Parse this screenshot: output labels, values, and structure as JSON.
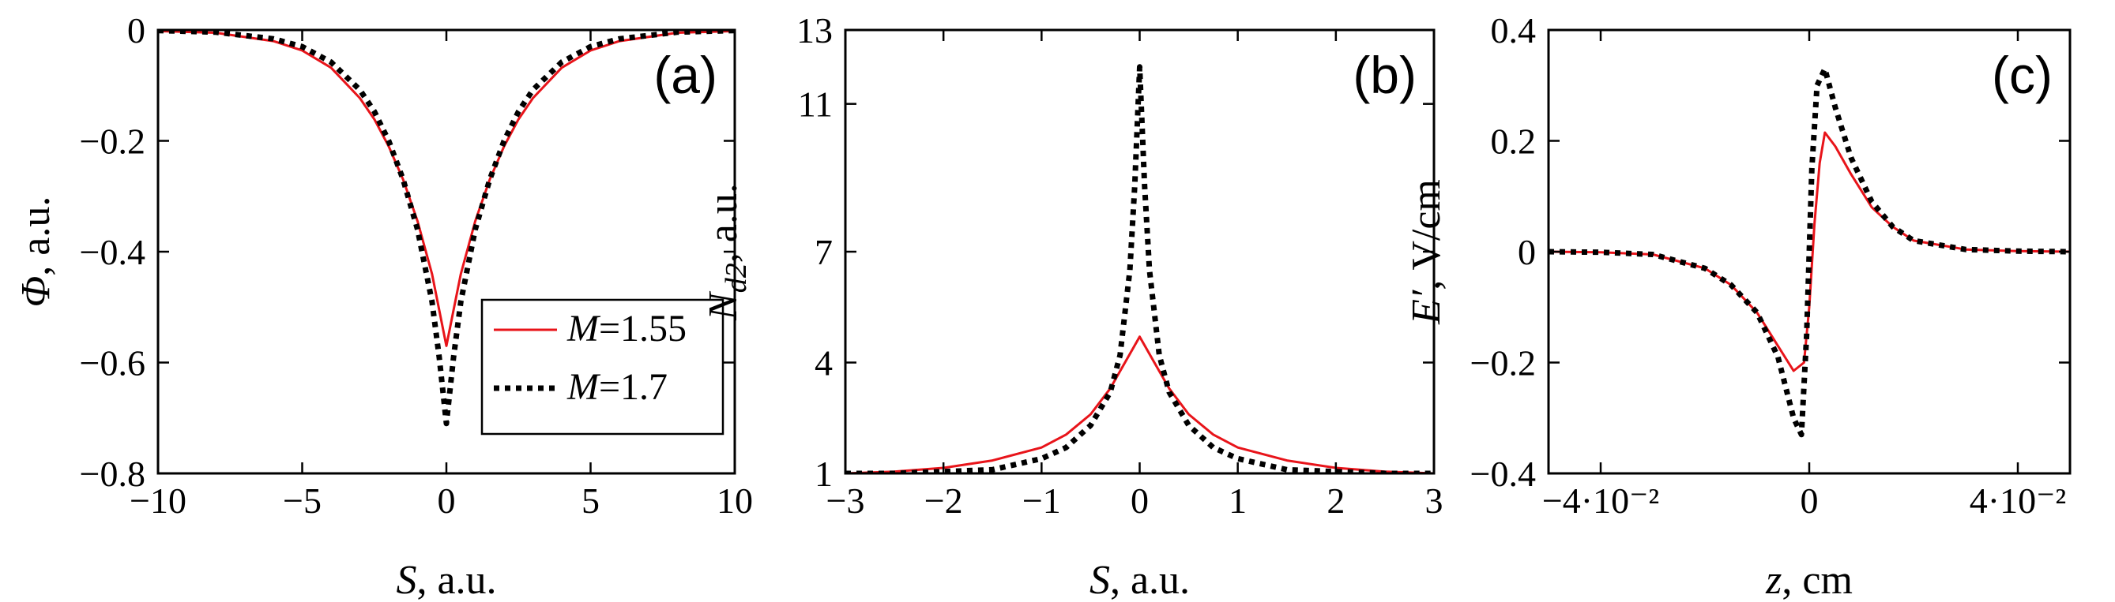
{
  "chart_data": [
    {
      "type": "line",
      "panel_label": "(a)",
      "xlabel": {
        "var": "S",
        "unit": ", a.u."
      },
      "ylabel": {
        "var": "Φ",
        "unit": ", a.u."
      },
      "xlim": [
        -10,
        10
      ],
      "ylim": [
        -0.8,
        0
      ],
      "xticks": [
        -10,
        -5,
        0,
        5,
        10
      ],
      "xtick_labels": [
        "−10",
        "−5",
        "0",
        "5",
        "10"
      ],
      "yticks": [
        0,
        -0.2,
        -0.4,
        -0.6,
        -0.8
      ],
      "ytick_labels": [
        "0",
        "−0.2",
        "−0.4",
        "−0.6",
        "−0.8"
      ],
      "legend": {
        "placement": "bottom-right",
        "entries": [
          {
            "var": "M",
            "text": "=1.55"
          },
          {
            "var": "M",
            "text": "=1.7"
          }
        ]
      },
      "series": [
        {
          "name": "M=1.55",
          "color": "#e8141a",
          "style": "solid",
          "x": [
            -10,
            -8,
            -6,
            -5,
            -4,
            -3,
            -2.5,
            -2,
            -1.5,
            -1,
            -0.5,
            -0.25,
            0,
            0.25,
            0.5,
            1,
            1.5,
            2,
            2.5,
            3,
            4,
            5,
            6,
            8,
            10
          ],
          "y": [
            -0.002,
            -0.005,
            -0.02,
            -0.037,
            -0.068,
            -0.123,
            -0.161,
            -0.21,
            -0.27,
            -0.345,
            -0.44,
            -0.505,
            -0.57,
            -0.505,
            -0.44,
            -0.345,
            -0.27,
            -0.21,
            -0.161,
            -0.123,
            -0.068,
            -0.037,
            -0.02,
            -0.005,
            -0.002
          ]
        },
        {
          "name": "M=1.7",
          "color": "#000000",
          "style": "dotted",
          "x": [
            -10,
            -8,
            -6,
            -5,
            -4,
            -3,
            -2.5,
            -2,
            -1.5,
            -1,
            -0.5,
            -0.25,
            0,
            0.25,
            0.5,
            1,
            1.5,
            2,
            2.5,
            3,
            4,
            5,
            6,
            8,
            10
          ],
          "y": [
            -0.001,
            -0.004,
            -0.016,
            -0.03,
            -0.058,
            -0.108,
            -0.147,
            -0.2,
            -0.27,
            -0.36,
            -0.49,
            -0.59,
            -0.71,
            -0.59,
            -0.49,
            -0.36,
            -0.27,
            -0.2,
            -0.147,
            -0.108,
            -0.058,
            -0.03,
            -0.016,
            -0.004,
            -0.001
          ]
        }
      ]
    },
    {
      "type": "line",
      "panel_label": "(b)",
      "xlabel": {
        "var": "S",
        "unit": ", a.u."
      },
      "ylabel": {
        "var": "N",
        "sub": "d2",
        "unit": ", a.u."
      },
      "xlim": [
        -3,
        3
      ],
      "ylim": [
        1,
        13
      ],
      "xticks": [
        -3,
        -2,
        -1,
        0,
        1,
        2,
        3
      ],
      "xtick_labels": [
        "−3",
        "−2",
        "−1",
        "0",
        "1",
        "2",
        "3"
      ],
      "yticks": [
        1,
        4,
        7,
        11,
        13
      ],
      "ytick_labels": [
        "1",
        "4",
        "7",
        "11",
        "13"
      ],
      "series": [
        {
          "name": "M=1.55",
          "color": "#e8141a",
          "style": "solid",
          "x": [
            -3,
            -2.5,
            -2,
            -1.5,
            -1,
            -0.75,
            -0.5,
            -0.3,
            -0.15,
            0,
            0.15,
            0.3,
            0.5,
            0.75,
            1,
            1.5,
            2,
            2.5,
            3
          ],
          "y": [
            1.0,
            1.05,
            1.15,
            1.35,
            1.7,
            2.05,
            2.6,
            3.3,
            4.0,
            4.7,
            4.0,
            3.3,
            2.6,
            2.05,
            1.7,
            1.35,
            1.15,
            1.05,
            1.0
          ]
        },
        {
          "name": "M=1.7",
          "color": "#000000",
          "style": "dotted",
          "x": [
            -3,
            -2.5,
            -2,
            -1.5,
            -1,
            -0.75,
            -0.5,
            -0.3,
            -0.2,
            -0.1,
            -0.05,
            0,
            0.05,
            0.1,
            0.2,
            0.3,
            0.5,
            0.75,
            1,
            1.5,
            2,
            2.5,
            3
          ],
          "y": [
            1.0,
            1.0,
            1.05,
            1.1,
            1.4,
            1.7,
            2.3,
            3.2,
            4.2,
            6.5,
            8.8,
            12.0,
            8.8,
            6.5,
            4.2,
            3.2,
            2.3,
            1.7,
            1.4,
            1.1,
            1.05,
            1.0,
            1.0
          ]
        }
      ]
    },
    {
      "type": "line",
      "panel_label": "(c)",
      "xlabel": {
        "var": "z",
        "unit": ", cm"
      },
      "ylabel": {
        "var": "E′",
        "unit": ", V/cm"
      },
      "xlim": [
        -0.05,
        0.05
      ],
      "ylim": [
        -0.4,
        0.4
      ],
      "xticks": [
        -0.04,
        0,
        0.04
      ],
      "xtick_labels": [
        "−4·10⁻²",
        "0",
        "4·10⁻²"
      ],
      "yticks": [
        0.4,
        0.2,
        0,
        -0.2,
        -0.4
      ],
      "ytick_labels": [
        "0.4",
        "0.2",
        "0",
        "−0.2",
        "−0.4"
      ],
      "series": [
        {
          "name": "M=1.55",
          "color": "#e8141a",
          "style": "solid",
          "x": [
            -0.05,
            -0.04,
            -0.03,
            -0.02,
            -0.015,
            -0.01,
            -0.006,
            -0.003,
            -0.001,
            0,
            0.001,
            0.002,
            0.003,
            0.005,
            0.008,
            0.012,
            0.016,
            0.02,
            0.03,
            0.04,
            0.05
          ],
          "y": [
            0,
            -0.001,
            -0.005,
            -0.03,
            -0.06,
            -0.11,
            -0.17,
            -0.215,
            -0.2,
            -0.1,
            0.05,
            0.16,
            0.215,
            0.19,
            0.14,
            0.08,
            0.045,
            0.02,
            0.004,
            0.001,
            0
          ]
        },
        {
          "name": "M=1.7",
          "color": "#000000",
          "style": "dotted",
          "x": [
            -0.05,
            -0.04,
            -0.03,
            -0.02,
            -0.015,
            -0.01,
            -0.006,
            -0.003,
            -0.0015,
            -0.0005,
            0.0005,
            0.0015,
            0.003,
            0.005,
            0.008,
            0.012,
            0.016,
            0.02,
            0.03,
            0.04,
            0.05
          ],
          "y": [
            0,
            -0.001,
            -0.005,
            -0.03,
            -0.06,
            -0.11,
            -0.19,
            -0.3,
            -0.33,
            -0.15,
            0.15,
            0.3,
            0.33,
            0.26,
            0.17,
            0.09,
            0.045,
            0.02,
            0.004,
            0.001,
            0
          ]
        }
      ]
    }
  ]
}
